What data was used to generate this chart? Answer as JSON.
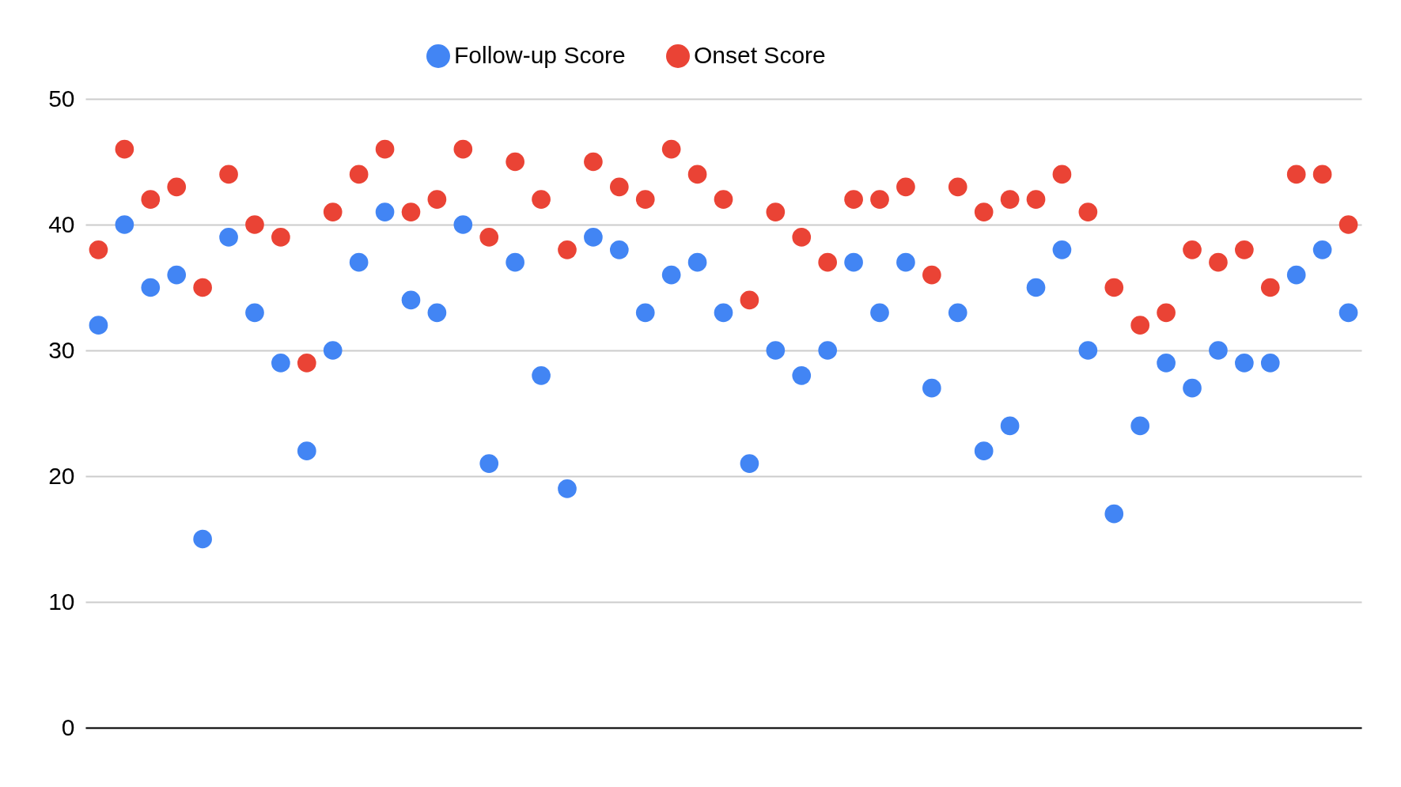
{
  "chart_data": {
    "type": "scatter",
    "categories": [
      null,
      null,
      null,
      null,
      null,
      null,
      null,
      null,
      null,
      null,
      null,
      null,
      null,
      null,
      null,
      null,
      null,
      null,
      null,
      null,
      null,
      null,
      null,
      null,
      null,
      null,
      null,
      null,
      null,
      null,
      null,
      null,
      null,
      null,
      null,
      null,
      null,
      null,
      null,
      null,
      null,
      null,
      null,
      null,
      null,
      null,
      null,
      null,
      null
    ],
    "series": [
      {
        "name": "Follow-up Score",
        "color": "#4285f4",
        "values": [
          32,
          40,
          35,
          36,
          15,
          39,
          33,
          29,
          22,
          30,
          37,
          41,
          34,
          33,
          40,
          21,
          37,
          28,
          19,
          39,
          38,
          33,
          36,
          37,
          33,
          21,
          30,
          28,
          30,
          37,
          33,
          37,
          27,
          33,
          22,
          24,
          35,
          38,
          30,
          17,
          24,
          29,
          27,
          30,
          29,
          29,
          36,
          38,
          33
        ]
      },
      {
        "name": "Onset Score",
        "color": "#ea4335",
        "values": [
          38,
          46,
          42,
          43,
          35,
          44,
          40,
          39,
          29,
          41,
          44,
          46,
          41,
          42,
          46,
          39,
          45,
          42,
          38,
          45,
          43,
          42,
          46,
          44,
          42,
          34,
          41,
          39,
          37,
          42,
          42,
          43,
          36,
          43,
          41,
          42,
          42,
          44,
          41,
          35,
          32,
          33,
          38,
          37,
          38,
          35,
          44,
          44,
          40
        ]
      }
    ],
    "ylim": [
      0,
      50
    ],
    "yticks": [
      0,
      10,
      20,
      30,
      40,
      50
    ],
    "grid": "y",
    "legend": "top",
    "marker": "circle",
    "tick_labels": "y"
  }
}
